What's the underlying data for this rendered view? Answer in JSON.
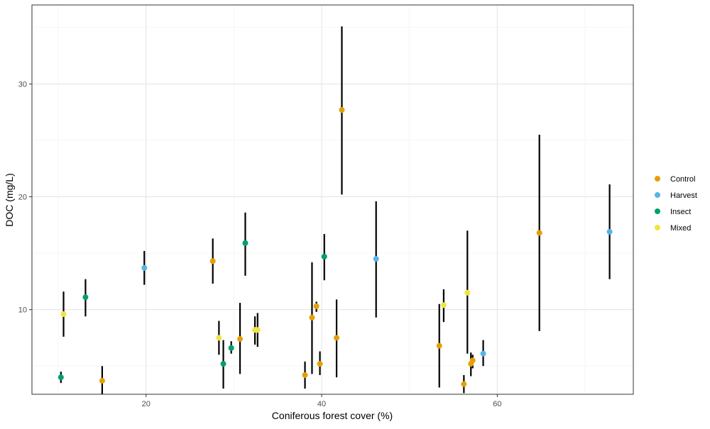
{
  "chart_data": {
    "type": "scatter",
    "title": "",
    "xlabel": "Coniferous forest cover (%)",
    "ylabel": "DOC (mg/L)",
    "xlim": [
      7,
      75.5
    ],
    "ylim": [
      2.5,
      37
    ],
    "xticks": [
      20,
      40,
      60
    ],
    "yticks": [
      10,
      20,
      30
    ],
    "xtick_labels": [
      "20",
      "40",
      "60"
    ],
    "ytick_labels": [
      "10",
      "20",
      "30"
    ],
    "grid": true,
    "legend_position": "right",
    "error_bars": true,
    "series": [
      {
        "name": "Control",
        "color": "#E69F00",
        "points": [
          {
            "x": 15.0,
            "y": 3.7,
            "ymin": 2.5,
            "ymax": 5.0
          },
          {
            "x": 27.6,
            "y": 14.3,
            "ymin": 12.3,
            "ymax": 16.3
          },
          {
            "x": 30.7,
            "y": 7.4,
            "ymin": 4.3,
            "ymax": 10.6
          },
          {
            "x": 38.1,
            "y": 4.2,
            "ymin": 3.0,
            "ymax": 5.4
          },
          {
            "x": 38.9,
            "y": 9.3,
            "ymin": 4.3,
            "ymax": 14.2
          },
          {
            "x": 39.4,
            "y": 10.3,
            "ymin": 9.8,
            "ymax": 10.7
          },
          {
            "x": 39.8,
            "y": 5.2,
            "ymin": 4.2,
            "ymax": 6.3
          },
          {
            "x": 41.7,
            "y": 7.5,
            "ymin": 4.0,
            "ymax": 10.9
          },
          {
            "x": 42.3,
            "y": 27.7,
            "ymin": 20.2,
            "ymax": 35.1
          },
          {
            "x": 53.4,
            "y": 6.8,
            "ymin": 3.1,
            "ymax": 10.5
          },
          {
            "x": 56.2,
            "y": 3.4,
            "ymin": 2.6,
            "ymax": 4.2
          },
          {
            "x": 57.0,
            "y": 5.2,
            "ymin": 4.1,
            "ymax": 6.2
          },
          {
            "x": 57.2,
            "y": 5.5,
            "ymin": 4.8,
            "ymax": 6.0
          },
          {
            "x": 64.8,
            "y": 16.8,
            "ymin": 8.1,
            "ymax": 25.5
          }
        ]
      },
      {
        "name": "Harvest",
        "color": "#56B4E9",
        "points": [
          {
            "x": 19.8,
            "y": 13.7,
            "ymin": 12.2,
            "ymax": 15.2
          },
          {
            "x": 46.2,
            "y": 14.5,
            "ymin": 9.3,
            "ymax": 19.6
          },
          {
            "x": 58.4,
            "y": 6.1,
            "ymin": 5.0,
            "ymax": 7.3
          },
          {
            "x": 72.8,
            "y": 16.9,
            "ymin": 12.7,
            "ymax": 21.1
          }
        ]
      },
      {
        "name": "Insect",
        "color": "#009E73",
        "points": [
          {
            "x": 10.3,
            "y": 4.0,
            "ymin": 3.5,
            "ymax": 4.5
          },
          {
            "x": 13.1,
            "y": 11.1,
            "ymin": 9.4,
            "ymax": 12.7
          },
          {
            "x": 28.8,
            "y": 5.2,
            "ymin": 3.0,
            "ymax": 7.3
          },
          {
            "x": 29.7,
            "y": 6.6,
            "ymin": 6.1,
            "ymax": 7.2
          },
          {
            "x": 31.3,
            "y": 15.9,
            "ymin": 13.0,
            "ymax": 18.6
          },
          {
            "x": 40.3,
            "y": 14.7,
            "ymin": 12.6,
            "ymax": 16.7
          }
        ]
      },
      {
        "name": "Mixed",
        "color": "#F0E442",
        "points": [
          {
            "x": 10.6,
            "y": 9.6,
            "ymin": 7.6,
            "ymax": 11.6
          },
          {
            "x": 28.3,
            "y": 7.5,
            "ymin": 6.0,
            "ymax": 9.0
          },
          {
            "x": 32.4,
            "y": 8.2,
            "ymin": 6.9,
            "ymax": 9.4
          },
          {
            "x": 32.7,
            "y": 8.2,
            "ymin": 6.7,
            "ymax": 9.7
          },
          {
            "x": 53.9,
            "y": 10.4,
            "ymin": 8.9,
            "ymax": 11.8
          },
          {
            "x": 56.6,
            "y": 11.5,
            "ymin": 6.1,
            "ymax": 17.0
          }
        ]
      }
    ]
  }
}
